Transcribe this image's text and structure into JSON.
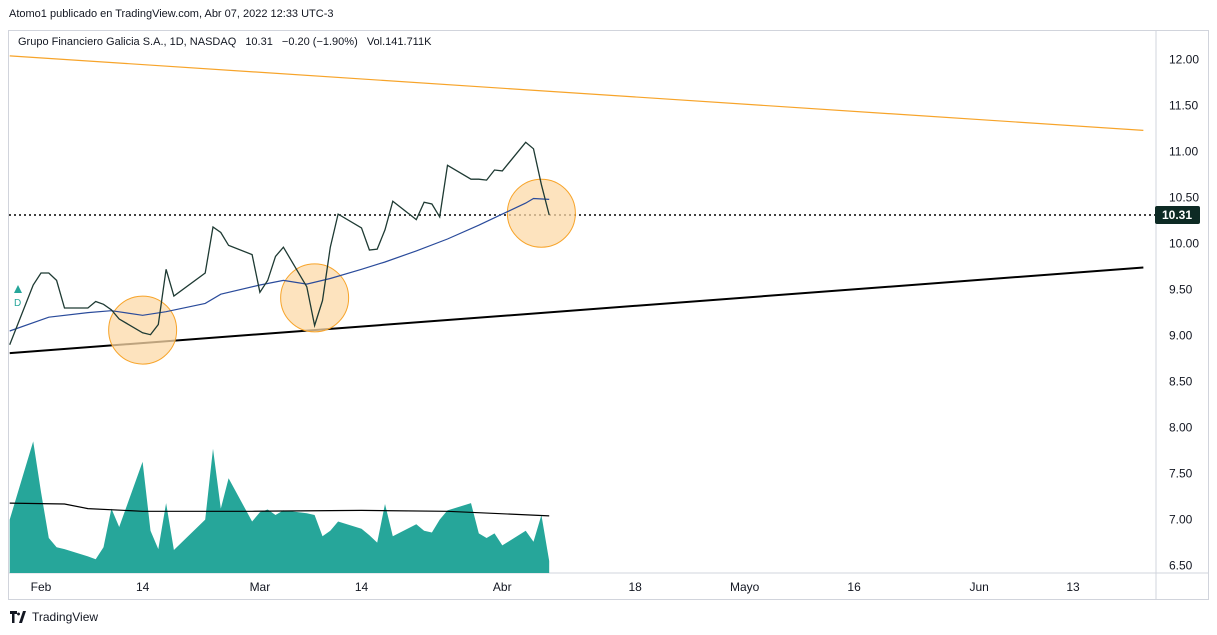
{
  "header": {
    "publisher": "Atomo1 publicado en TradingView.com, Abr 07, 2022 12:33 UTC-3"
  },
  "legend": {
    "symbol": "Grupo Financiero Galicia S.A., 1D, NASDAQ",
    "last": "10.31",
    "change": "−0.20 (−1.90%)",
    "volume": "Vol.141.711K"
  },
  "price_label": "10.31",
  "marker_letter": "D",
  "brand": "TradingView",
  "colors": {
    "price_line": "#1e3a33",
    "ma_line": "#2a4b9b",
    "volume_fill": "#26a69a",
    "upper_trend": "#f7a42a",
    "lower_trend": "#000000",
    "highlight_fill": "#fcd9a8",
    "highlight_stroke": "#f7a42a",
    "price_tag": "#0d2a24"
  },
  "chart_data": {
    "type": "line",
    "title": "",
    "y_axis": {
      "ticks": [
        12.0,
        11.5,
        11.0,
        10.5,
        10.0,
        9.5,
        9.0,
        8.5,
        8.0,
        7.5,
        7.0,
        6.5
      ],
      "range": [
        6.42,
        12.31
      ],
      "position": "right"
    },
    "x_axis": {
      "ticks": [
        {
          "label": "Feb",
          "date": "2022-02-01"
        },
        {
          "label": "14",
          "date": "2022-02-14"
        },
        {
          "label": "Mar",
          "date": "2022-03-01"
        },
        {
          "label": "14",
          "date": "2022-03-14"
        },
        {
          "label": "Abr",
          "date": "2022-04-01"
        },
        {
          "label": "18",
          "date": "2022-04-18"
        },
        {
          "label": "Mayo",
          "date": "2022-05-02"
        },
        {
          "label": "16",
          "date": "2022-05-16"
        },
        {
          "label": "Jun",
          "date": "2022-06-01"
        },
        {
          "label": "13",
          "date": "2022-06-13"
        }
      ]
    },
    "series": [
      {
        "kind": "price",
        "points": [
          [
            "2022-01-28",
            8.9
          ],
          [
            "2022-01-31",
            9.55
          ],
          [
            "2022-02-01",
            9.68
          ],
          [
            "2022-02-02",
            9.68
          ],
          [
            "2022-02-03",
            9.6
          ],
          [
            "2022-02-04",
            9.3
          ],
          [
            "2022-02-07",
            9.3
          ],
          [
            "2022-02-08",
            9.37
          ],
          [
            "2022-02-09",
            9.34
          ],
          [
            "2022-02-10",
            9.28
          ],
          [
            "2022-02-11",
            9.18
          ],
          [
            "2022-02-14",
            9.03
          ],
          [
            "2022-02-15",
            9.01
          ],
          [
            "2022-02-16",
            9.12
          ],
          [
            "2022-02-17",
            9.72
          ],
          [
            "2022-02-18",
            9.43
          ],
          [
            "2022-02-22",
            9.68
          ],
          [
            "2022-02-23",
            10.18
          ],
          [
            "2022-02-24",
            10.12
          ],
          [
            "2022-02-25",
            9.98
          ],
          [
            "2022-02-28",
            9.88
          ],
          [
            "2022-03-01",
            9.47
          ],
          [
            "2022-03-02",
            9.6
          ],
          [
            "2022-03-03",
            9.86
          ],
          [
            "2022-03-04",
            9.96
          ],
          [
            "2022-03-07",
            9.53
          ],
          [
            "2022-03-08",
            9.11
          ],
          [
            "2022-03-09",
            9.38
          ],
          [
            "2022-03-10",
            9.96
          ],
          [
            "2022-03-11",
            10.32
          ],
          [
            "2022-03-14",
            10.17
          ],
          [
            "2022-03-15",
            9.93
          ],
          [
            "2022-03-16",
            9.94
          ],
          [
            "2022-03-17",
            10.15
          ],
          [
            "2022-03-18",
            10.46
          ],
          [
            "2022-03-21",
            10.26
          ],
          [
            "2022-03-22",
            10.45
          ],
          [
            "2022-03-23",
            10.43
          ],
          [
            "2022-03-24",
            10.29
          ],
          [
            "2022-03-25",
            10.85
          ],
          [
            "2022-03-28",
            10.7
          ],
          [
            "2022-03-29",
            10.7
          ],
          [
            "2022-03-30",
            10.69
          ],
          [
            "2022-03-31",
            10.8
          ],
          [
            "2022-04-01",
            10.79
          ],
          [
            "2022-04-04",
            11.1
          ],
          [
            "2022-04-05",
            11.03
          ],
          [
            "2022-04-06",
            10.64
          ],
          [
            "2022-04-07",
            10.31
          ]
        ]
      },
      {
        "kind": "moving_average",
        "points": [
          [
            "2022-01-28",
            9.05
          ],
          [
            "2022-02-02",
            9.2
          ],
          [
            "2022-02-07",
            9.25
          ],
          [
            "2022-02-10",
            9.27
          ],
          [
            "2022-02-14",
            9.22
          ],
          [
            "2022-02-17",
            9.26
          ],
          [
            "2022-02-22",
            9.35
          ],
          [
            "2022-02-24",
            9.45
          ],
          [
            "2022-03-01",
            9.55
          ],
          [
            "2022-03-04",
            9.6
          ],
          [
            "2022-03-07",
            9.56
          ],
          [
            "2022-03-10",
            9.62
          ],
          [
            "2022-03-14",
            9.72
          ],
          [
            "2022-03-17",
            9.8
          ],
          [
            "2022-03-21",
            9.92
          ],
          [
            "2022-03-25",
            10.05
          ],
          [
            "2022-03-29",
            10.2
          ],
          [
            "2022-04-01",
            10.32
          ],
          [
            "2022-04-04",
            10.44
          ],
          [
            "2022-04-05",
            10.49
          ],
          [
            "2022-04-07",
            10.48
          ]
        ]
      },
      {
        "kind": "volume",
        "points": [
          [
            "2022-01-28",
            7.0
          ],
          [
            "2022-01-31",
            7.85
          ],
          [
            "2022-02-01",
            7.3
          ],
          [
            "2022-02-02",
            6.8
          ],
          [
            "2022-02-03",
            6.7
          ],
          [
            "2022-02-04",
            6.68
          ],
          [
            "2022-02-07",
            6.6
          ],
          [
            "2022-02-08",
            6.57
          ],
          [
            "2022-02-09",
            6.7
          ],
          [
            "2022-02-10",
            7.12
          ],
          [
            "2022-02-11",
            6.92
          ],
          [
            "2022-02-14",
            7.63
          ],
          [
            "2022-02-15",
            6.88
          ],
          [
            "2022-02-16",
            6.68
          ],
          [
            "2022-02-17",
            7.18
          ],
          [
            "2022-02-18",
            6.67
          ],
          [
            "2022-02-22",
            7.0
          ],
          [
            "2022-02-23",
            7.77
          ],
          [
            "2022-02-24",
            7.12
          ],
          [
            "2022-02-25",
            7.45
          ],
          [
            "2022-02-28",
            6.98
          ],
          [
            "2022-03-01",
            7.08
          ],
          [
            "2022-03-02",
            7.11
          ],
          [
            "2022-03-03",
            7.05
          ],
          [
            "2022-03-04",
            7.1
          ],
          [
            "2022-03-07",
            7.07
          ],
          [
            "2022-03-08",
            7.05
          ],
          [
            "2022-03-09",
            6.82
          ],
          [
            "2022-03-10",
            6.88
          ],
          [
            "2022-03-11",
            6.98
          ],
          [
            "2022-03-14",
            6.9
          ],
          [
            "2022-03-15",
            6.83
          ],
          [
            "2022-03-16",
            6.75
          ],
          [
            "2022-03-17",
            7.17
          ],
          [
            "2022-03-18",
            6.82
          ],
          [
            "2022-03-21",
            6.95
          ],
          [
            "2022-03-22",
            6.88
          ],
          [
            "2022-03-23",
            6.86
          ],
          [
            "2022-03-24",
            7.0
          ],
          [
            "2022-03-25",
            7.1
          ],
          [
            "2022-03-28",
            7.18
          ],
          [
            "2022-03-29",
            6.85
          ],
          [
            "2022-03-30",
            6.8
          ],
          [
            "2022-03-31",
            6.85
          ],
          [
            "2022-04-01",
            6.72
          ],
          [
            "2022-04-04",
            6.88
          ],
          [
            "2022-04-05",
            6.76
          ],
          [
            "2022-04-06",
            7.05
          ],
          [
            "2022-04-07",
            6.55
          ]
        ]
      },
      {
        "kind": "volume_average",
        "points": [
          [
            "2022-01-28",
            7.18
          ],
          [
            "2022-02-04",
            7.17
          ],
          [
            "2022-02-07",
            7.12
          ],
          [
            "2022-02-14",
            7.09
          ],
          [
            "2022-02-28",
            7.09
          ],
          [
            "2022-03-14",
            7.1
          ],
          [
            "2022-03-25",
            7.09
          ],
          [
            "2022-04-07",
            7.04
          ]
        ]
      }
    ],
    "trendlines": [
      {
        "role": "upper",
        "from": [
          "2022-01-28",
          12.04
        ],
        "to": [
          "2022-06-22",
          11.23
        ]
      },
      {
        "role": "lower",
        "from": [
          "2022-01-28",
          8.81
        ],
        "to": [
          "2022-06-22",
          9.74
        ]
      }
    ],
    "highlights": [
      {
        "center": [
          "2022-02-14",
          9.06
        ]
      },
      {
        "center": [
          "2022-03-08",
          9.41
        ]
      },
      {
        "center": [
          "2022-04-06",
          10.33
        ]
      }
    ],
    "current_price_line": 10.31,
    "grid": false
  }
}
